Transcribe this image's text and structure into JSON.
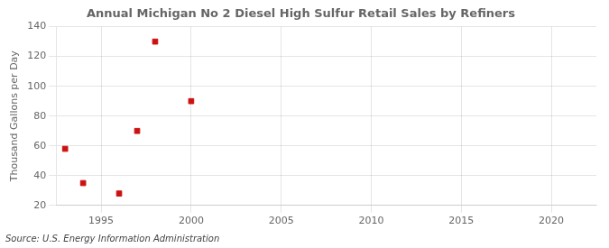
{
  "chart_data": {
    "type": "scatter",
    "title": "Annual Michigan No 2 Diesel High Sulfur Retail Sales by Refiners",
    "ylabel": "Thousand Gallons per Day",
    "annotations": [
      "Source: U.S. Energy Information Administration"
    ],
    "x": [
      1993,
      1994,
      1996,
      1997,
      1998,
      2000
    ],
    "values": [
      58,
      35,
      28,
      70,
      130,
      90
    ],
    "color": "#cc1111",
    "marker": "square",
    "xlim": [
      1992.5,
      2022.5
    ],
    "xticks": [
      1995,
      2000,
      2005,
      2010,
      2015,
      2020
    ],
    "ylim": [
      20,
      140
    ],
    "yticks": [
      20,
      40,
      60,
      80,
      100,
      120,
      140
    ],
    "grid": true
  }
}
